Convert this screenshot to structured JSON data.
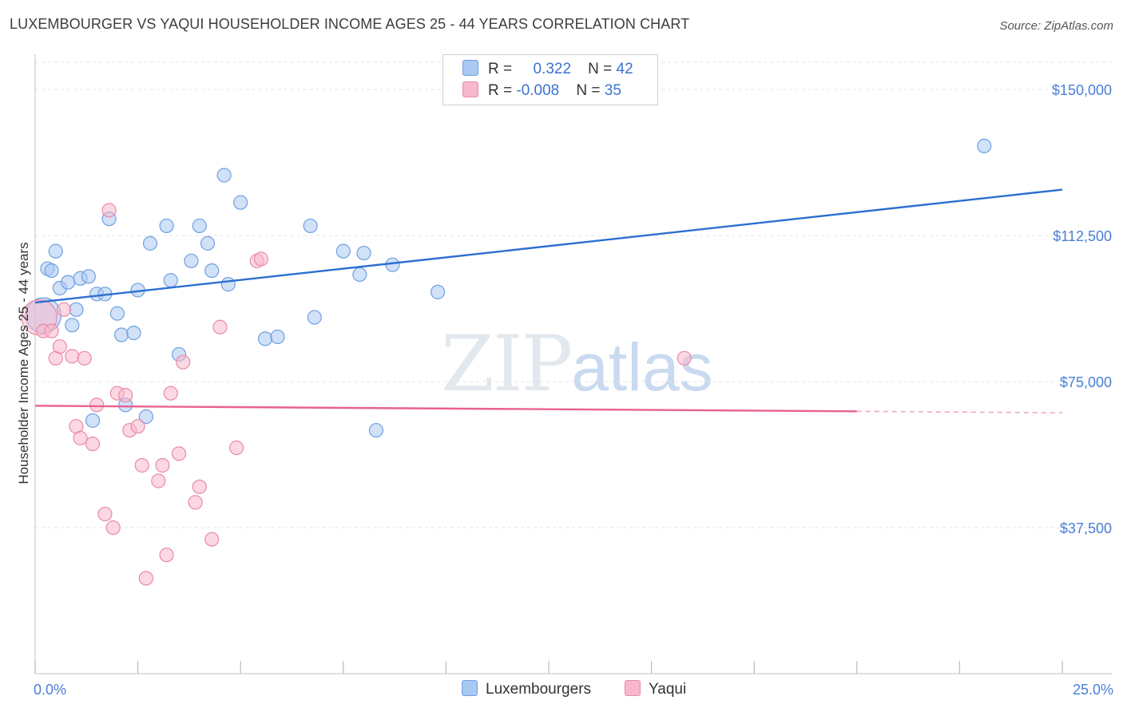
{
  "title": "LUXEMBOURGER VS YAQUI HOUSEHOLDER INCOME AGES 25 - 44 YEARS CORRELATION CHART",
  "source": "Source: ZipAtlas.com",
  "watermark": {
    "zip": "ZIP",
    "atlas": "atlas"
  },
  "legend": {
    "rows": [
      {
        "r_label": "R = ",
        "r_value": "0.322",
        "n_label": "N = ",
        "n_value": "42",
        "color": "#a9c8f2"
      },
      {
        "r_label": "R = ",
        "r_value": "-0.008",
        "n_label": "N = ",
        "n_value": "35",
        "color": "#f7b8cc"
      }
    ]
  },
  "bottom_legend": [
    {
      "label": "Luxembourgers",
      "color": "#a9c8f2"
    },
    {
      "label": "Yaqui",
      "color": "#f7b8cc"
    }
  ],
  "colors": {
    "blue_fill": "#a9c8f2",
    "blue_stroke": "#6fa0e0",
    "blue_line": "#2b6fd1",
    "pink_fill": "#f7b8cc",
    "pink_stroke": "#e98aa8",
    "pink_line": "#e8628e",
    "grid": "#e3e3e3",
    "axis_text": "#4a7fd6"
  },
  "chart_data": {
    "type": "scatter",
    "title": "LUXEMBOURGER VS YAQUI HOUSEHOLDER INCOME AGES 25 - 44 YEARS CORRELATION CHART",
    "xlabel": "",
    "ylabel": "Householder Income Ages 25 - 44 years",
    "xlim": [
      0,
      25
    ],
    "ylim": [
      0,
      157000
    ],
    "x_tick_labels": [
      {
        "value": 0,
        "label": "0.0%"
      },
      {
        "value": 25,
        "label": "25.0%"
      }
    ],
    "x_minor_ticks": [
      0,
      2.5,
      5,
      7.5,
      10,
      12.5,
      15,
      17.5,
      20,
      22.5,
      25
    ],
    "y_ticks": [
      {
        "value": 37500,
        "label": "$37,500"
      },
      {
        "value": 75000,
        "label": "$75,000"
      },
      {
        "value": 112500,
        "label": "$112,500"
      },
      {
        "value": 150000,
        "label": "$150,000"
      }
    ],
    "series": [
      {
        "name": "Luxembourgers",
        "r": 0.322,
        "n": 42,
        "trend": {
          "x": [
            0,
            25
          ],
          "y": [
            95300,
            124300
          ],
          "dashed_from": null
        },
        "points": [
          {
            "x": 0.2,
            "y": 92000,
            "big": true
          },
          {
            "x": 0.3,
            "y": 104000
          },
          {
            "x": 0.4,
            "y": 103500
          },
          {
            "x": 0.5,
            "y": 108500
          },
          {
            "x": 0.6,
            "y": 99000
          },
          {
            "x": 0.8,
            "y": 100500
          },
          {
            "x": 0.9,
            "y": 89500
          },
          {
            "x": 1.0,
            "y": 93500
          },
          {
            "x": 1.1,
            "y": 101500
          },
          {
            "x": 1.3,
            "y": 102000
          },
          {
            "x": 1.4,
            "y": 65000
          },
          {
            "x": 1.5,
            "y": 97500
          },
          {
            "x": 1.7,
            "y": 97500
          },
          {
            "x": 1.8,
            "y": 116800
          },
          {
            "x": 2.0,
            "y": 92500
          },
          {
            "x": 2.1,
            "y": 87000
          },
          {
            "x": 2.2,
            "y": 69000
          },
          {
            "x": 2.4,
            "y": 87500
          },
          {
            "x": 2.5,
            "y": 98500
          },
          {
            "x": 2.7,
            "y": 66000
          },
          {
            "x": 2.8,
            "y": 110500
          },
          {
            "x": 3.2,
            "y": 115000
          },
          {
            "x": 3.3,
            "y": 101000
          },
          {
            "x": 3.5,
            "y": 82000
          },
          {
            "x": 3.8,
            "y": 106000
          },
          {
            "x": 4.0,
            "y": 115000
          },
          {
            "x": 4.2,
            "y": 110500
          },
          {
            "x": 4.3,
            "y": 103500
          },
          {
            "x": 4.6,
            "y": 128000
          },
          {
            "x": 4.7,
            "y": 100000
          },
          {
            "x": 5.0,
            "y": 121000
          },
          {
            "x": 5.6,
            "y": 86000
          },
          {
            "x": 5.9,
            "y": 86500
          },
          {
            "x": 6.7,
            "y": 115000
          },
          {
            "x": 6.8,
            "y": 91500
          },
          {
            "x": 7.5,
            "y": 108500
          },
          {
            "x": 7.9,
            "y": 102500
          },
          {
            "x": 8.0,
            "y": 108000
          },
          {
            "x": 8.3,
            "y": 62500
          },
          {
            "x": 8.7,
            "y": 105000
          },
          {
            "x": 9.8,
            "y": 98000
          },
          {
            "x": 23.1,
            "y": 135500
          }
        ]
      },
      {
        "name": "Yaqui",
        "r": -0.008,
        "n": 35,
        "trend": {
          "x": [
            0,
            25
          ],
          "y": [
            68800,
            67000
          ],
          "dashed_from": 20
        },
        "points": [
          {
            "x": 0.1,
            "y": 91500,
            "big": true
          },
          {
            "x": 0.2,
            "y": 88000
          },
          {
            "x": 0.4,
            "y": 88000
          },
          {
            "x": 0.5,
            "y": 81000
          },
          {
            "x": 0.6,
            "y": 84000
          },
          {
            "x": 0.7,
            "y": 93500
          },
          {
            "x": 0.9,
            "y": 81500
          },
          {
            "x": 1.0,
            "y": 63500
          },
          {
            "x": 1.1,
            "y": 60500
          },
          {
            "x": 1.2,
            "y": 81000
          },
          {
            "x": 1.4,
            "y": 59000
          },
          {
            "x": 1.5,
            "y": 69000
          },
          {
            "x": 1.7,
            "y": 41000
          },
          {
            "x": 1.8,
            "y": 119000
          },
          {
            "x": 1.9,
            "y": 37500
          },
          {
            "x": 2.0,
            "y": 72000
          },
          {
            "x": 2.2,
            "y": 71500
          },
          {
            "x": 2.3,
            "y": 62500
          },
          {
            "x": 2.5,
            "y": 63500
          },
          {
            "x": 2.6,
            "y": 53500
          },
          {
            "x": 2.7,
            "y": 24500
          },
          {
            "x": 3.0,
            "y": 49500
          },
          {
            "x": 3.1,
            "y": 53500
          },
          {
            "x": 3.2,
            "y": 30500
          },
          {
            "x": 3.3,
            "y": 72000
          },
          {
            "x": 3.5,
            "y": 56500
          },
          {
            "x": 3.6,
            "y": 80000
          },
          {
            "x": 3.9,
            "y": 44000
          },
          {
            "x": 4.0,
            "y": 48000
          },
          {
            "x": 4.3,
            "y": 34500
          },
          {
            "x": 4.5,
            "y": 89000
          },
          {
            "x": 4.9,
            "y": 58000
          },
          {
            "x": 5.4,
            "y": 106000
          },
          {
            "x": 5.5,
            "y": 106500
          },
          {
            "x": 15.8,
            "y": 81000
          }
        ]
      }
    ]
  }
}
